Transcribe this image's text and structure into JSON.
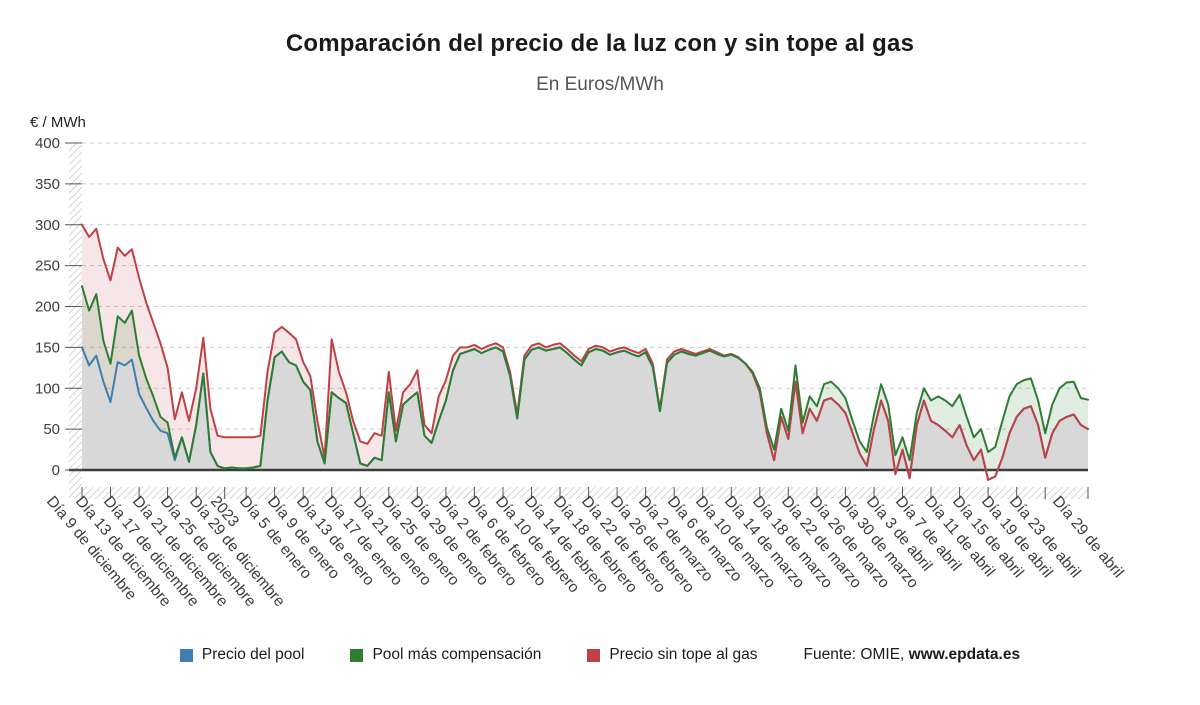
{
  "header": {
    "title": "Comparación del precio de la luz con y sin tope al gas",
    "subtitle": "En Euros/MWh"
  },
  "axis": {
    "y_unit_label": "€ / MWh",
    "y_ticks": [
      0,
      50,
      100,
      150,
      200,
      250,
      300,
      350,
      400
    ],
    "x_tick_labels": [
      {
        "label": "Día 9 de diciembre",
        "i": 0
      },
      {
        "label": "Día 13 de diciembre",
        "i": 4
      },
      {
        "label": "Día 17 de diciembre",
        "i": 8
      },
      {
        "label": "Día 21 de diciembre",
        "i": 12
      },
      {
        "label": "Día 25 de diciembre",
        "i": 16
      },
      {
        "label": "Día 29 de diciembre",
        "i": 20
      },
      {
        "label": "2023",
        "i": 23
      },
      {
        "label": "Día 5 de enero",
        "i": 27
      },
      {
        "label": "Día 9 de enero",
        "i": 31
      },
      {
        "label": "Día 13 de enero",
        "i": 35
      },
      {
        "label": "Día 17 de enero",
        "i": 39
      },
      {
        "label": "Día 21 de enero",
        "i": 43
      },
      {
        "label": "Día 25 de enero",
        "i": 47
      },
      {
        "label": "Día 29 de enero",
        "i": 51
      },
      {
        "label": "Día 2 de febrero",
        "i": 55
      },
      {
        "label": "Día 6 de febrero",
        "i": 59
      },
      {
        "label": "Día 10 de febrero",
        "i": 63
      },
      {
        "label": "Día 14 de febrero",
        "i": 67
      },
      {
        "label": "Día 18 de febrero",
        "i": 71
      },
      {
        "label": "Día 22 de febrero",
        "i": 75
      },
      {
        "label": "Día 26 de febrero",
        "i": 79
      },
      {
        "label": "Día 2 de marzo",
        "i": 83
      },
      {
        "label": "Día 6 de marzo",
        "i": 87
      },
      {
        "label": "Día 10 de marzo",
        "i": 91
      },
      {
        "label": "Día 14 de marzo",
        "i": 95
      },
      {
        "label": "Día 18 de marzo",
        "i": 99
      },
      {
        "label": "Día 22 de marzo",
        "i": 103
      },
      {
        "label": "Día 26 de marzo",
        "i": 107
      },
      {
        "label": "Día 30 de marzo",
        "i": 111
      },
      {
        "label": "Día 3 de abril",
        "i": 115
      },
      {
        "label": "Día 7 de abril",
        "i": 119
      },
      {
        "label": "Día 11 de abril",
        "i": 123
      },
      {
        "label": "Día 15 de abril",
        "i": 127
      },
      {
        "label": "Día 19 de abril",
        "i": 131
      },
      {
        "label": "Día 23 de abril",
        "i": 135
      },
      {
        "label": "Día 29 de abril",
        "i": 141
      }
    ]
  },
  "chart_data": {
    "type": "area",
    "title": "Comparación del precio de la luz con y sin tope al gas",
    "subtitle": "En Euros/MWh",
    "ylabel": "€ / MWh",
    "ylim": [
      0,
      400
    ],
    "grid": "dashed horizontal gridlines every 50",
    "legend_position": "bottom",
    "x_start": "Día 9 de diciembre (2022)",
    "x_end": "Día 29 de abril (2023)",
    "x_frequency": "daily (142 points, estimated from plot)",
    "series": [
      {
        "id": "pool",
        "name": "Precio del pool",
        "color": "#3e7fb1",
        "fill": "#d8d8d8",
        "values": [
          150,
          128,
          140,
          108,
          83,
          132,
          128,
          135,
          93,
          76,
          60,
          48,
          45,
          12,
          40,
          10,
          55,
          118,
          22,
          5,
          2,
          3,
          2,
          2,
          3,
          5,
          85,
          138,
          145,
          132,
          128,
          108,
          98,
          35,
          8,
          95,
          88,
          82,
          45,
          8,
          5,
          15,
          12,
          95,
          35,
          80,
          88,
          95,
          42,
          33,
          60,
          85,
          122,
          142,
          145,
          148,
          143,
          147,
          150,
          145,
          115,
          63,
          135,
          147,
          150,
          146,
          148,
          150,
          143,
          135,
          128,
          144,
          148,
          146,
          141,
          144,
          146,
          142,
          139,
          144,
          126,
          72,
          131,
          141,
          145,
          142,
          140,
          143,
          146,
          142,
          139,
          141,
          137,
          130,
          118,
          95,
          45,
          12,
          65,
          38,
          108,
          45,
          75,
          60,
          85,
          88,
          80,
          70,
          45,
          20,
          5,
          50,
          85,
          60,
          -5,
          25,
          -10,
          55,
          85,
          60,
          55,
          48,
          40,
          55,
          30,
          12,
          25,
          -12,
          -8,
          15,
          45,
          65,
          75,
          78,
          55,
          15,
          45,
          60,
          65,
          68,
          55,
          50
        ]
      },
      {
        "id": "pool-compensacion",
        "name": "Pool más compensación",
        "color": "#2f7d33",
        "fill": "rgba(47,125,51,0.14)",
        "values": [
          225,
          195,
          215,
          158,
          130,
          188,
          180,
          195,
          140,
          112,
          90,
          65,
          58,
          15,
          40,
          10,
          55,
          118,
          22,
          5,
          2,
          3,
          2,
          2,
          3,
          5,
          85,
          138,
          145,
          132,
          128,
          108,
          98,
          35,
          8,
          95,
          88,
          82,
          45,
          8,
          5,
          15,
          12,
          95,
          35,
          80,
          88,
          95,
          42,
          33,
          60,
          85,
          122,
          142,
          145,
          148,
          143,
          147,
          150,
          145,
          115,
          63,
          135,
          147,
          150,
          146,
          148,
          150,
          143,
          135,
          128,
          144,
          148,
          146,
          141,
          144,
          146,
          142,
          139,
          144,
          126,
          72,
          131,
          141,
          145,
          142,
          140,
          143,
          146,
          142,
          139,
          141,
          137,
          130,
          120,
          100,
          52,
          25,
          75,
          48,
          128,
          58,
          90,
          78,
          105,
          108,
          100,
          88,
          60,
          35,
          22,
          68,
          105,
          80,
          18,
          40,
          12,
          70,
          100,
          85,
          90,
          85,
          78,
          92,
          65,
          40,
          50,
          22,
          28,
          60,
          90,
          105,
          110,
          112,
          85,
          45,
          80,
          100,
          107,
          108,
          88,
          86
        ]
      },
      {
        "id": "sin-tope",
        "name": "Precio sin tope al gas",
        "color": "#bf4045",
        "fill": "rgba(191,64,69,0.13)",
        "values": [
          300,
          285,
          295,
          258,
          232,
          272,
          262,
          270,
          235,
          205,
          180,
          155,
          125,
          62,
          95,
          60,
          100,
          162,
          75,
          42,
          40,
          40,
          40,
          40,
          40,
          42,
          120,
          168,
          175,
          168,
          160,
          132,
          115,
          60,
          15,
          160,
          120,
          95,
          60,
          35,
          32,
          45,
          42,
          120,
          48,
          95,
          105,
          122,
          55,
          45,
          90,
          110,
          140,
          150,
          150,
          153,
          148,
          152,
          155,
          150,
          120,
          68,
          140,
          152,
          155,
          150,
          153,
          155,
          148,
          140,
          133,
          148,
          152,
          150,
          145,
          148,
          150,
          146,
          143,
          148,
          130,
          75,
          135,
          145,
          148,
          145,
          142,
          145,
          148,
          144,
          140,
          142,
          138,
          130,
          118,
          95,
          45,
          12,
          65,
          38,
          108,
          45,
          75,
          60,
          85,
          88,
          80,
          70,
          45,
          20,
          5,
          50,
          85,
          60,
          -5,
          25,
          -10,
          55,
          85,
          60,
          55,
          48,
          40,
          55,
          30,
          12,
          25,
          -12,
          -8,
          15,
          45,
          65,
          75,
          78,
          55,
          15,
          45,
          60,
          65,
          68,
          55,
          50
        ]
      }
    ]
  },
  "legend": {
    "items": [
      {
        "label": "Precio del pool",
        "color": "#3e7fb1"
      },
      {
        "label": "Pool más compensación",
        "color": "#2f7d33"
      },
      {
        "label": "Precio sin tope al gas",
        "color": "#bf4045"
      }
    ]
  },
  "source": {
    "prefix": "Fuente: OMIE, ",
    "site": "www.epdata.es"
  }
}
